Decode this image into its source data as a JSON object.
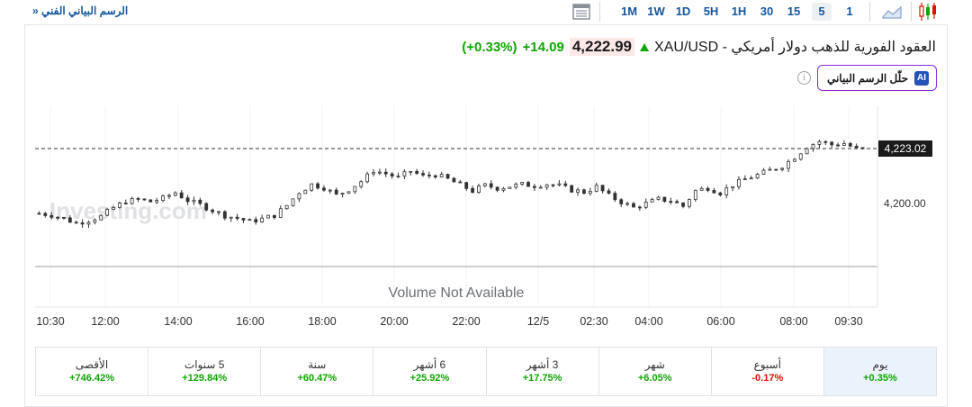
{
  "toolbar": {
    "technical_chart_link": "الرسم البياني الفني",
    "chevron": "»",
    "timeframes": [
      "1M",
      "1W",
      "1D",
      "5H",
      "1H",
      "30",
      "15",
      "5",
      "1"
    ],
    "active_timeframe": "5",
    "icons": [
      "table-icon",
      "area-chart-icon",
      "candlestick-chart-icon"
    ]
  },
  "header": {
    "instrument": "XAU/USD - العقود الفورية للذهب دولار أمريكي",
    "price": "4,222.99",
    "change": "+14.09",
    "change_pct": "(+0.33%)",
    "direction": "up",
    "ai_button_label": "حلّل الرسم البياني",
    "ai_badge": "AI",
    "info_icon": "i"
  },
  "chart_data": {
    "type": "candlestick",
    "watermark": "Investing.com",
    "volume_text": "Volume Not Available",
    "current_price_label": "4,223.02",
    "current_price": 4223.02,
    "y_tick_labels": [
      "4,200.00"
    ],
    "y_ticks": [
      4200
    ],
    "ylim": [
      4182,
      4243
    ],
    "x_tick_labels": [
      "10:30",
      "12:00",
      "14:00",
      "16:00",
      "18:00",
      "20:00",
      "22:00",
      "12/5",
      "02:30",
      "04:00",
      "06:00",
      "08:00",
      "09:30"
    ],
    "close_series": [
      4198.2,
      4197.5,
      4196.0,
      4194.1,
      4195.3,
      4197.0,
      4200.6,
      4203.2,
      4204.0,
      4203.1,
      4204.5,
      4206.9,
      4203.6,
      4201.8,
      4199.5,
      4197.3,
      4196.2,
      4194.8,
      4195.9,
      4197.4,
      4201.5,
      4207.1,
      4210.3,
      4209.0,
      4205.8,
      4208.2,
      4211.6,
      4216.1,
      4214.8,
      4213.2,
      4215.9,
      4213.7,
      4214.4,
      4212.5,
      4210.1,
      4207.6,
      4209.9,
      4208.8,
      4209.5,
      4210.3,
      4209.8,
      4210.5,
      4209.7,
      4208.0,
      4207.1,
      4209.3,
      4205.6,
      4203.0,
      4200.6,
      4202.4,
      4204.1,
      4203.5,
      4201.2,
      4207.7,
      4208.9,
      4206.8,
      4210.1,
      4212.5,
      4214.3,
      4216.2,
      4218.0,
      4221.7,
      4226.1,
      4228.3,
      4226.9,
      4227.5,
      4225.1
    ]
  },
  "performance": [
    {
      "label": "يوم",
      "value": "+0.35%",
      "dir": "pos",
      "active": true
    },
    {
      "label": "أسبوع",
      "value": "-0.17%",
      "dir": "neg",
      "active": false
    },
    {
      "label": "شهر",
      "value": "+6.05%",
      "dir": "pos",
      "active": false
    },
    {
      "label": "3 أشهر",
      "value": "+17.75%",
      "dir": "pos",
      "active": false
    },
    {
      "label": "6 أشهر",
      "value": "+25.92%",
      "dir": "pos",
      "active": false
    },
    {
      "label": "سنة",
      "value": "+60.47%",
      "dir": "pos",
      "active": false
    },
    {
      "label": "5 سنوات",
      "value": "+129.84%",
      "dir": "pos",
      "active": false
    },
    {
      "label": "الأقصى",
      "value": "+746.42%",
      "dir": "pos",
      "active": false
    }
  ],
  "colors": {
    "up": "#0ea600",
    "down": "#d91400",
    "link": "#1256a0",
    "ai_border": "#8a2ce0",
    "candle": "#333333"
  }
}
